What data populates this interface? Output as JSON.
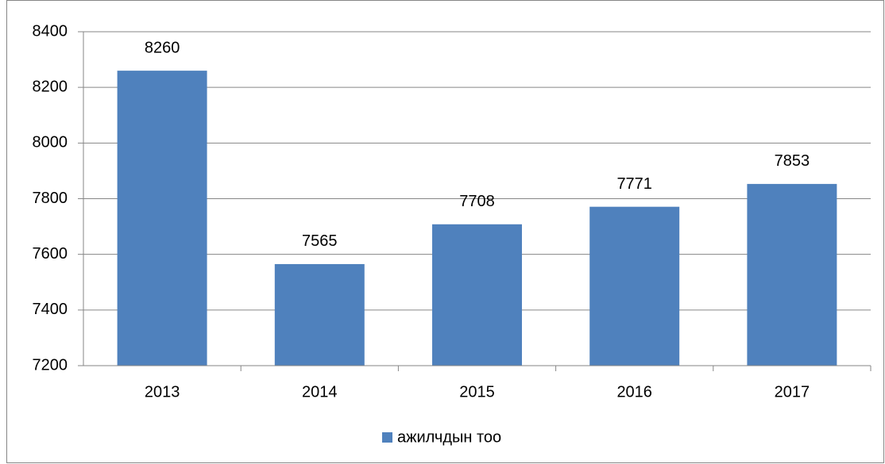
{
  "chart_data": {
    "type": "bar",
    "categories": [
      "2013",
      "2014",
      "2015",
      "2016",
      "2017"
    ],
    "series": [
      {
        "name": "ажилчдын тоо",
        "color": "#4f81bd",
        "values": [
          8260,
          7565,
          7708,
          7771,
          7853
        ]
      }
    ],
    "ylim": [
      7200,
      8400
    ],
    "yticks": [
      7200,
      7400,
      7600,
      7800,
      8000,
      8200,
      8400
    ],
    "grid": true,
    "legend": "bottom"
  }
}
